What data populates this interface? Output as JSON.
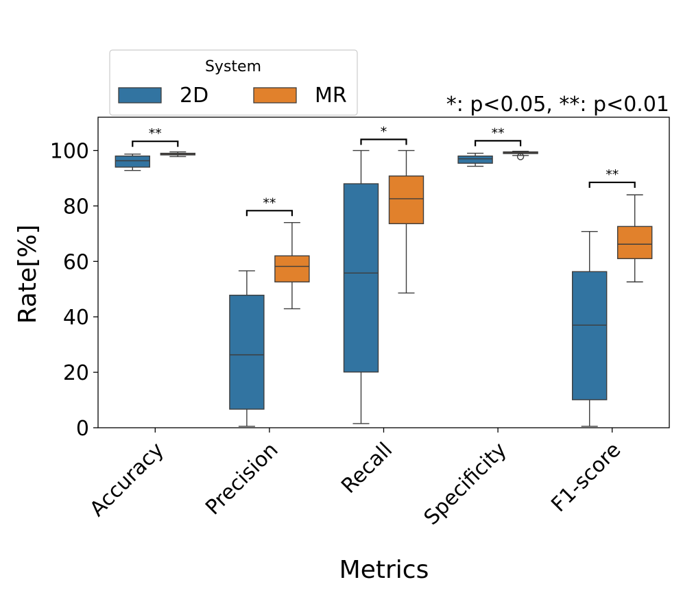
{
  "chart_data": {
    "type": "box",
    "title": "",
    "xlabel": "Metrics",
    "ylabel": "Rate[%]",
    "ylim": [
      0,
      112
    ],
    "yticks": [
      0,
      20,
      40,
      60,
      80,
      100
    ],
    "categories": [
      "Accuracy",
      "Precision",
      "Recall",
      "Specificity",
      "F1-score"
    ],
    "legend": {
      "title": "System",
      "position": "top-left"
    },
    "annotation": "*: p<0.05, **: p<0.01",
    "series": [
      {
        "name": "2D",
        "color": "#3274a1",
        "boxes": [
          {
            "whislo": 92.8,
            "q1": 94.0,
            "med": 96.3,
            "q3": 98.0,
            "whishi": 98.7,
            "fliers": []
          },
          {
            "whislo": 0.5,
            "q1": 6.7,
            "med": 26.3,
            "q3": 47.8,
            "whishi": 56.6,
            "fliers": []
          },
          {
            "whislo": 1.5,
            "q1": 20.1,
            "med": 55.8,
            "q3": 88.0,
            "whishi": 100.0,
            "fliers": []
          },
          {
            "whislo": 94.3,
            "q1": 95.4,
            "med": 97.0,
            "q3": 98.0,
            "whishi": 99.0,
            "fliers": []
          },
          {
            "whislo": 0.5,
            "q1": 10.1,
            "med": 37.0,
            "q3": 56.3,
            "whishi": 70.8,
            "fliers": []
          }
        ]
      },
      {
        "name": "MR",
        "color": "#e1812c",
        "boxes": [
          {
            "whislo": 97.8,
            "q1": 98.4,
            "med": 98.7,
            "q3": 99.0,
            "whishi": 99.5,
            "fliers": []
          },
          {
            "whislo": 42.9,
            "q1": 52.6,
            "med": 58.2,
            "q3": 62.0,
            "whishi": 74.0,
            "fliers": []
          },
          {
            "whislo": 48.6,
            "q1": 73.6,
            "med": 82.6,
            "q3": 90.8,
            "whishi": 100.0,
            "fliers": []
          },
          {
            "whislo": 98.2,
            "q1": 98.9,
            "med": 99.2,
            "q3": 99.5,
            "whishi": 99.7,
            "fliers": [
              97.8
            ]
          },
          {
            "whislo": 52.6,
            "q1": 61.0,
            "med": 66.2,
            "q3": 72.6,
            "whishi": 84.0,
            "fliers": []
          }
        ]
      }
    ],
    "significance": [
      {
        "category": "Accuracy",
        "label": "**",
        "y": 103.3
      },
      {
        "category": "Precision",
        "label": "**",
        "y": 78.3
      },
      {
        "category": "Recall",
        "label": "*",
        "y": 104.0
      },
      {
        "category": "Specificity",
        "label": "**",
        "y": 103.5
      },
      {
        "category": "F1-score",
        "label": "**",
        "y": 88.5
      }
    ]
  }
}
